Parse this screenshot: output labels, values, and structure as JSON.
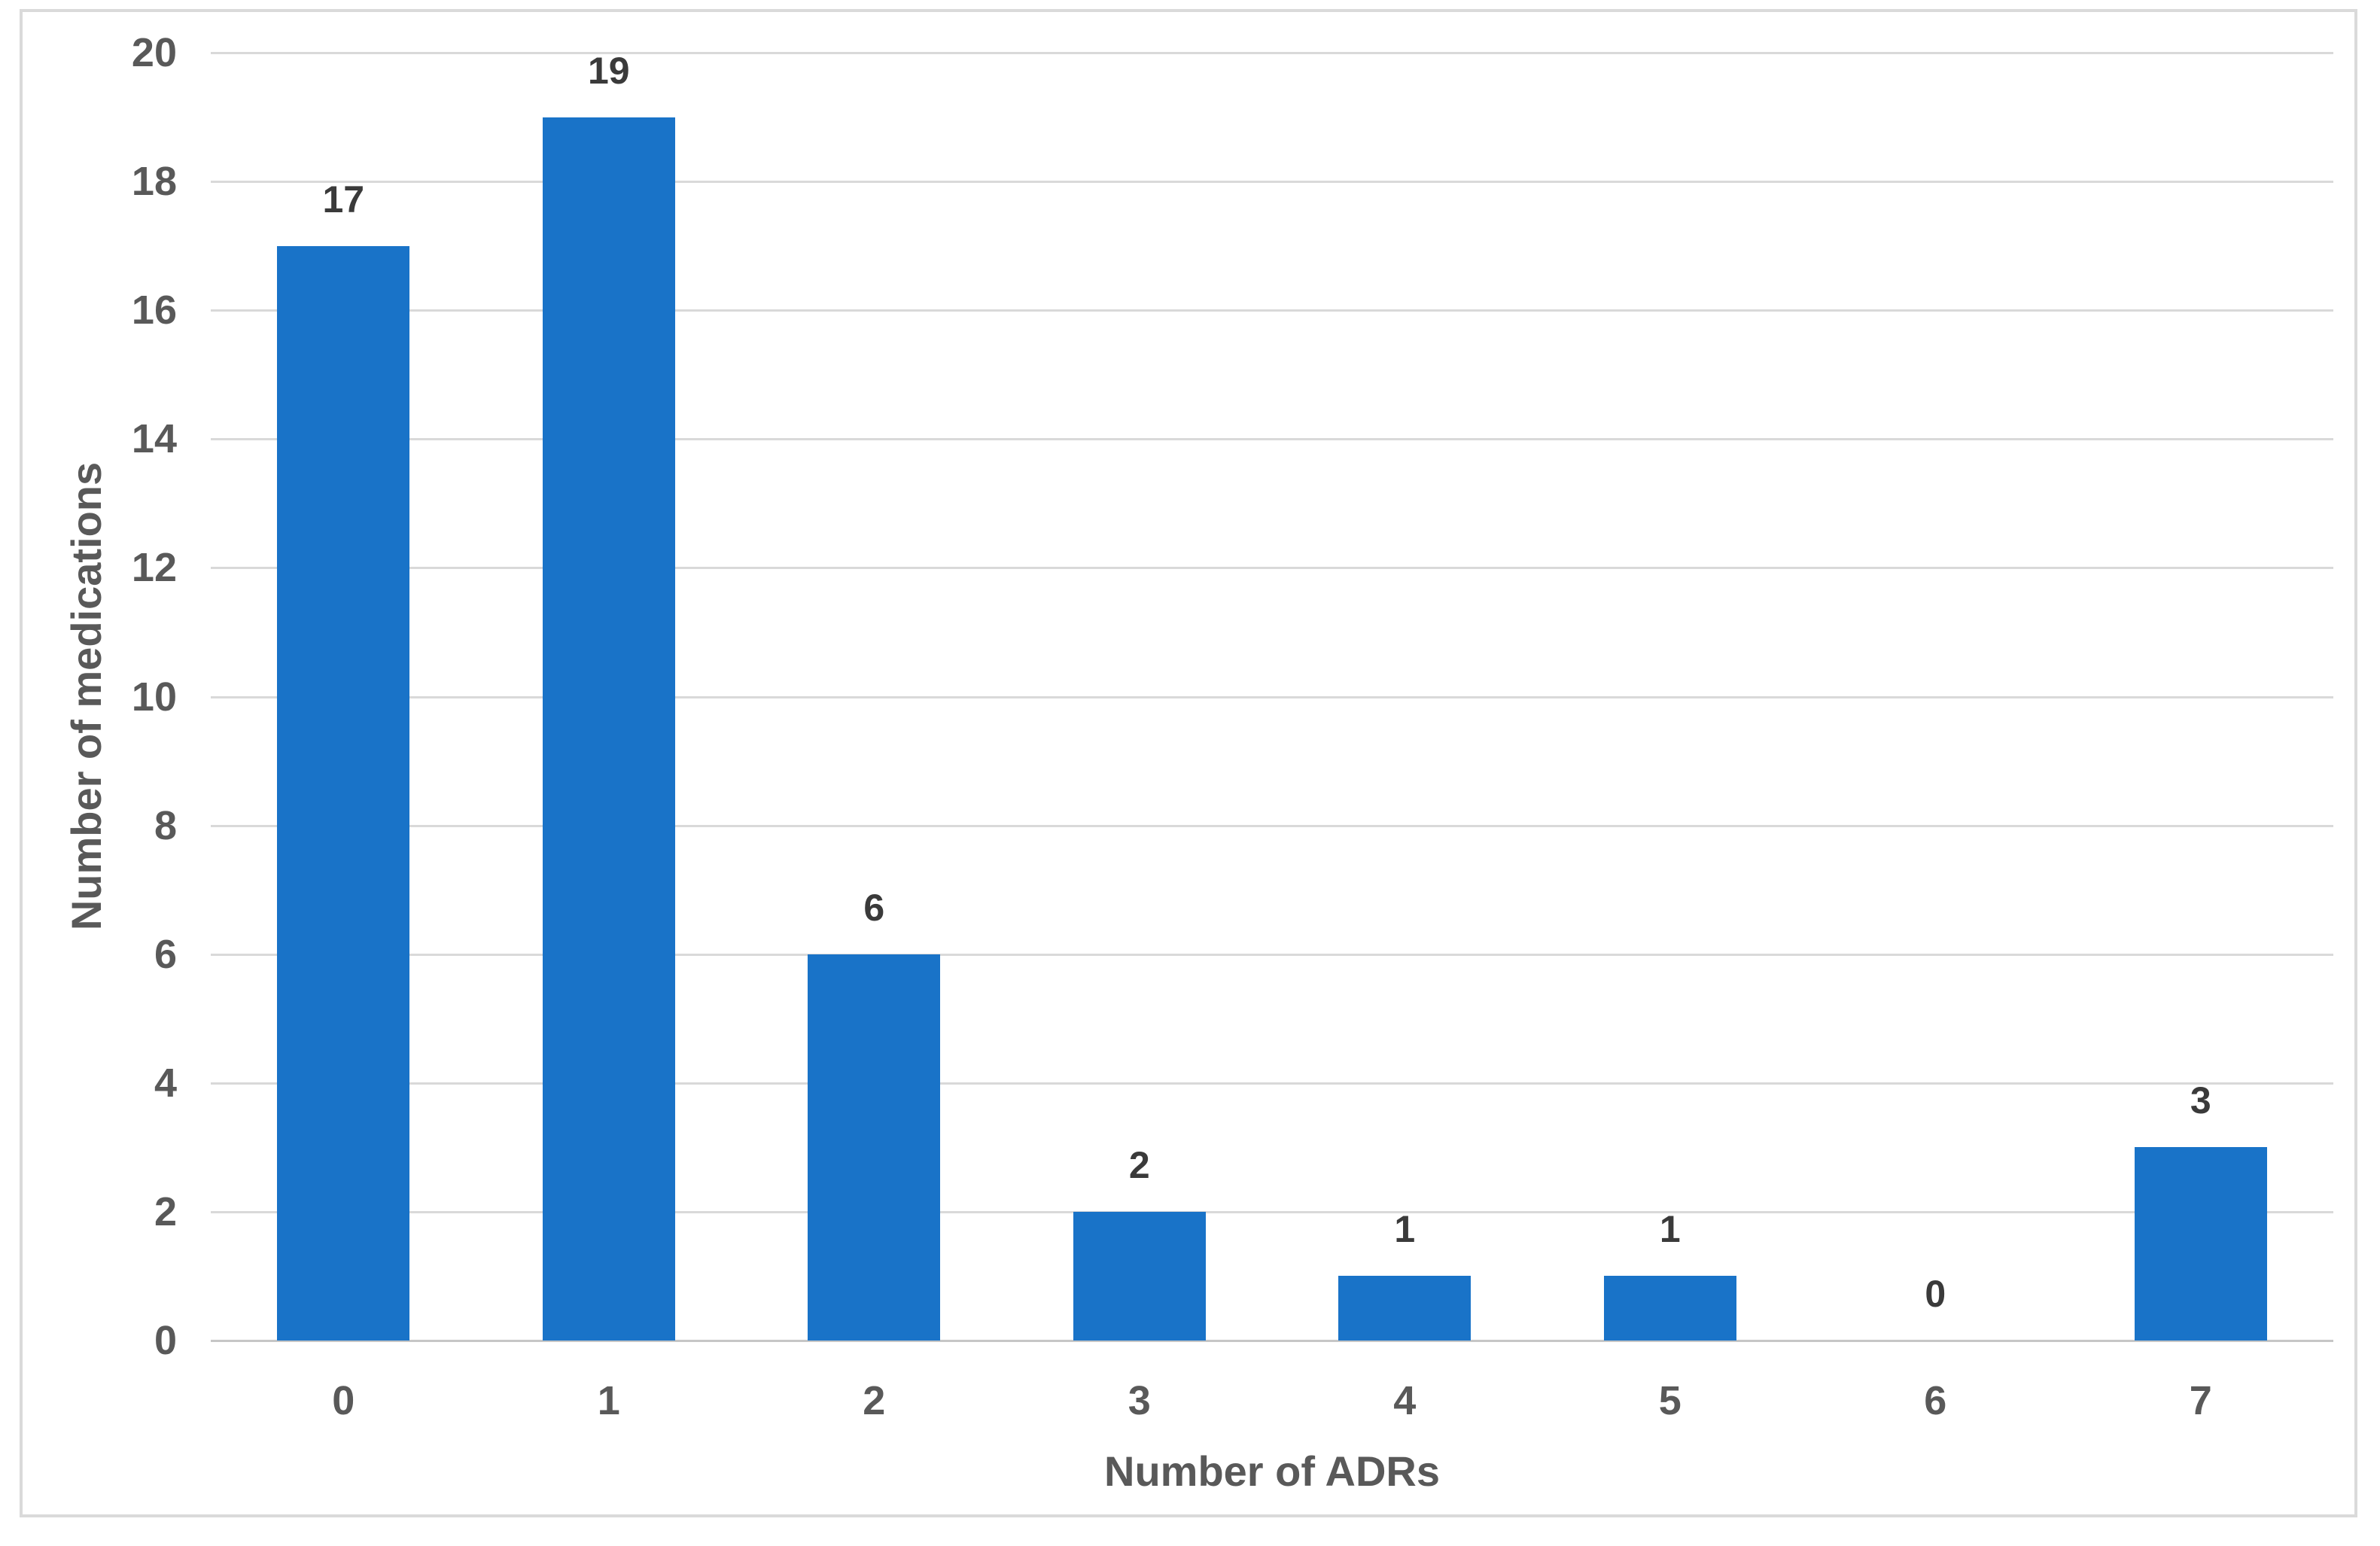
{
  "chart_data": {
    "type": "bar",
    "title": "",
    "categories": [
      "0",
      "1",
      "2",
      "3",
      "4",
      "5",
      "6",
      "7"
    ],
    "values": [
      17,
      19,
      6,
      2,
      1,
      1,
      0,
      3
    ],
    "data_labels": [
      "17",
      "19",
      "6",
      "2",
      "1",
      "1",
      "0",
      "3"
    ],
    "xlabel": "Number of ADRs",
    "ylabel": "Number of medications",
    "ylim": [
      0,
      20
    ],
    "ytick_step": 2,
    "yticks": [
      "0",
      "2",
      "4",
      "6",
      "8",
      "10",
      "12",
      "14",
      "16",
      "18",
      "20"
    ],
    "grid": "horizontal",
    "legend": "none",
    "colors": {
      "bar": "#1973c8",
      "data_label": "#3a3a3a",
      "axis_text": "#595959",
      "gridline": "#d9d9d9",
      "axis_line": "#c6c6c6",
      "frame_border": "#dadada",
      "background": "#ffffff"
    }
  }
}
